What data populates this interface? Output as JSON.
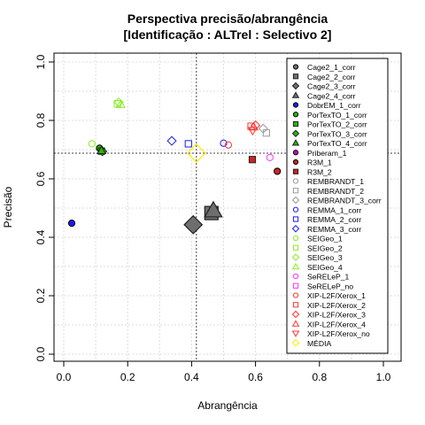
{
  "chart_data": {
    "type": "scatter",
    "title": "Perspectiva precisão/abrangência",
    "subtitle": "[Identificação : ALTrel : Selectivo 2]",
    "xlabel": "Abrangência",
    "ylabel": "Precisão",
    "xlim": [
      0,
      1
    ],
    "ylim": [
      0,
      1
    ],
    "xticks": [
      "0.0",
      "0.2",
      "0.4",
      "0.6",
      "0.8",
      "1.0"
    ],
    "yticks": [
      "0.0",
      "0.2",
      "0.4",
      "0.6",
      "0.8",
      "1.0"
    ],
    "grid": true,
    "legend_position": "right",
    "reference_lines": {
      "x": 0.415,
      "y": 0.688
    },
    "series": [
      {
        "name": "Cage2_1_corr",
        "marker": "circle",
        "fill": true,
        "color": "#6e6e6e",
        "size": "small",
        "points": []
      },
      {
        "name": "Cage2_2_corr",
        "marker": "square",
        "fill": true,
        "color": "#6e6e6e",
        "size": "large",
        "points": [
          [
            0.462,
            0.483
          ]
        ]
      },
      {
        "name": "Cage2_3_corr",
        "marker": "diamond",
        "fill": true,
        "color": "#6e6e6e",
        "size": "large",
        "points": [
          [
            0.405,
            0.443
          ]
        ]
      },
      {
        "name": "Cage2_4_corr",
        "marker": "triangle",
        "fill": true,
        "color": "#6e6e6e",
        "size": "large",
        "points": [
          [
            0.468,
            0.492
          ]
        ]
      },
      {
        "name": "DobrEM_1_corr",
        "marker": "circle",
        "fill": true,
        "color": "#1a1aff",
        "size": "small",
        "points": [
          [
            0.025,
            0.448
          ]
        ]
      },
      {
        "name": "PorTexTO_1_corr",
        "marker": "circle",
        "fill": true,
        "color": "#22bb00",
        "size": "small",
        "points": [
          [
            0.112,
            0.705
          ]
        ]
      },
      {
        "name": "PorTexTO_2_corr",
        "marker": "square",
        "fill": true,
        "color": "#22bb00",
        "size": "small",
        "points": [
          [
            0.118,
            0.695
          ]
        ]
      },
      {
        "name": "PorTexTO_3_corr",
        "marker": "diamond",
        "fill": true,
        "color": "#22bb00",
        "size": "small",
        "points": [
          [
            0.121,
            0.694
          ]
        ]
      },
      {
        "name": "PorTexTO_4_corr",
        "marker": "triangle",
        "fill": true,
        "color": "#22bb00",
        "size": "small",
        "points": [
          [
            0.118,
            0.697
          ]
        ]
      },
      {
        "name": "Priberam_1",
        "marker": "circle",
        "fill": true,
        "color": "#cc00cc",
        "size": "small",
        "points": []
      },
      {
        "name": "R3M_1",
        "marker": "circle",
        "fill": true,
        "color": "#cc2222",
        "size": "small",
        "points": [
          [
            0.668,
            0.626
          ]
        ]
      },
      {
        "name": "R3M_2",
        "marker": "square",
        "fill": true,
        "color": "#cc2222",
        "size": "small",
        "points": [
          [
            0.59,
            0.666
          ]
        ]
      },
      {
        "name": "REMBRANDT_1",
        "marker": "circle",
        "fill": false,
        "color": "#999999",
        "size": "small",
        "points": []
      },
      {
        "name": "REMBRANDT_2",
        "marker": "square",
        "fill": false,
        "color": "#999999",
        "size": "small",
        "points": [
          [
            0.634,
            0.757
          ]
        ]
      },
      {
        "name": "REMBRANDT_3_corr",
        "marker": "diamond",
        "fill": false,
        "color": "#999999",
        "size": "small",
        "points": [
          [
            0.624,
            0.772
          ]
        ]
      },
      {
        "name": "REMMA_1_corr",
        "marker": "circle",
        "fill": false,
        "color": "#1a1aff",
        "size": "small",
        "points": [
          [
            0.5,
            0.722
          ]
        ]
      },
      {
        "name": "REMMA_2_corr",
        "marker": "square",
        "fill": false,
        "color": "#1a1aff",
        "size": "small",
        "points": [
          [
            0.39,
            0.72
          ]
        ]
      },
      {
        "name": "REMMA_3_corr",
        "marker": "diamond",
        "fill": false,
        "color": "#1a1aff",
        "size": "small",
        "points": [
          [
            0.338,
            0.73
          ]
        ]
      },
      {
        "name": "SEIGeo_1",
        "marker": "circle",
        "fill": false,
        "color": "#88ee22",
        "size": "small",
        "points": [
          [
            0.088,
            0.72
          ]
        ]
      },
      {
        "name": "SEIGeo_2",
        "marker": "square",
        "fill": false,
        "color": "#88ee22",
        "size": "small",
        "points": [
          [
            0.168,
            0.857
          ]
        ]
      },
      {
        "name": "SEIGeo_3",
        "marker": "diamond",
        "fill": false,
        "color": "#88ee22",
        "size": "small",
        "points": [
          [
            0.172,
            0.862
          ]
        ]
      },
      {
        "name": "SEIGeo_4",
        "marker": "triangle",
        "fill": false,
        "color": "#88ee22",
        "size": "small",
        "points": [
          [
            0.178,
            0.855
          ]
        ]
      },
      {
        "name": "SeRELeP_1",
        "marker": "circle",
        "fill": false,
        "color": "#ff33ff",
        "size": "small",
        "points": [
          [
            0.645,
            0.673
          ]
        ]
      },
      {
        "name": "SeRELeP_no",
        "marker": "square",
        "fill": false,
        "color": "#ff33ff",
        "size": "small",
        "points": []
      },
      {
        "name": "XIP-L2F/Xerox_1",
        "marker": "circle",
        "fill": false,
        "color": "#ff3333",
        "size": "small",
        "points": [
          [
            0.515,
            0.716
          ]
        ]
      },
      {
        "name": "XIP-L2F/Xerox_2",
        "marker": "square",
        "fill": false,
        "color": "#ff3333",
        "size": "small",
        "points": [
          [
            0.586,
            0.78
          ]
        ]
      },
      {
        "name": "XIP-L2F/Xerox_3",
        "marker": "diamond",
        "fill": false,
        "color": "#ff3333",
        "size": "small",
        "points": [
          [
            0.6,
            0.783
          ]
        ]
      },
      {
        "name": "XIP-L2F/Xerox_4",
        "marker": "triangle",
        "fill": false,
        "color": "#ff3333",
        "size": "small",
        "points": [
          [
            0.594,
            0.778
          ]
        ]
      },
      {
        "name": "XIP-L2F/Xerox_no",
        "marker": "triangle-down",
        "fill": false,
        "color": "#ff3333",
        "size": "small",
        "points": [
          [
            0.591,
            0.765
          ]
        ]
      },
      {
        "name": "MÉDIA",
        "marker": "diamond",
        "fill": false,
        "color": "#ffee00",
        "size": "large",
        "points": [
          [
            0.415,
            0.688
          ]
        ]
      }
    ]
  }
}
